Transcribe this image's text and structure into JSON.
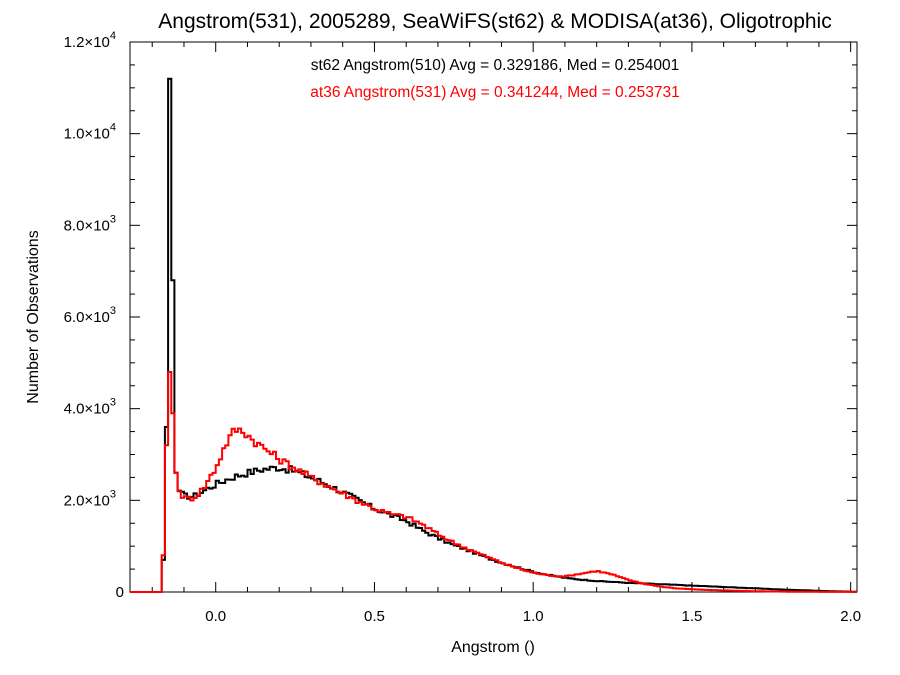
{
  "chart_data": {
    "type": "line",
    "style": "step-histogram",
    "title": "Angstrom(531), 2005289, SeaWiFS(st62) & MODISA(at36), Oligotrophic",
    "xlabel": "Angstrom ()",
    "ylabel": "Number of Observations",
    "xlim": [
      -0.27,
      2.02
    ],
    "ylim": [
      0,
      12000
    ],
    "xticks": [
      0.0,
      0.5,
      1.0,
      1.5,
      2.0
    ],
    "xtick_labels": [
      "0.0",
      "0.5",
      "1.0",
      "1.5",
      "2.0"
    ],
    "yticks": [
      0,
      2000,
      4000,
      6000,
      8000,
      10000,
      12000
    ],
    "ytick_labels": [
      {
        "mantissa": "0",
        "exponent": ""
      },
      {
        "mantissa": "2.0×10",
        "exponent": "3"
      },
      {
        "mantissa": "4.0×10",
        "exponent": "3"
      },
      {
        "mantissa": "6.0×10",
        "exponent": "3"
      },
      {
        "mantissa": "8.0×10",
        "exponent": "3"
      },
      {
        "mantissa": "1.0×10",
        "exponent": "4"
      },
      {
        "mantissa": "1.2×10",
        "exponent": "4"
      }
    ],
    "grid": false,
    "legend_position": "top-center",
    "series": [
      {
        "legend_text": "st62 Angstrom(510) Avg = 0.329186, Med = 0.254001",
        "color": "#000000",
        "points": [
          [
            -0.27,
            0
          ],
          [
            -0.17,
            0
          ],
          [
            -0.16,
            1400
          ],
          [
            -0.155,
            3600
          ],
          [
            -0.15,
            7000
          ],
          [
            -0.145,
            11200
          ],
          [
            -0.14,
            8600
          ],
          [
            -0.135,
            6800
          ],
          [
            -0.13,
            4200
          ],
          [
            -0.125,
            2600
          ],
          [
            -0.12,
            2250
          ],
          [
            -0.1,
            2100
          ],
          [
            -0.07,
            2080
          ],
          [
            -0.04,
            2200
          ],
          [
            0.0,
            2350
          ],
          [
            0.05,
            2500
          ],
          [
            0.1,
            2600
          ],
          [
            0.15,
            2680
          ],
          [
            0.2,
            2720
          ],
          [
            0.25,
            2640
          ],
          [
            0.3,
            2500
          ],
          [
            0.35,
            2350
          ],
          [
            0.4,
            2180
          ],
          [
            0.45,
            2000
          ],
          [
            0.5,
            1820
          ],
          [
            0.55,
            1680
          ],
          [
            0.6,
            1550
          ],
          [
            0.65,
            1350
          ],
          [
            0.7,
            1180
          ],
          [
            0.75,
            1020
          ],
          [
            0.8,
            900
          ],
          [
            0.85,
            760
          ],
          [
            0.9,
            640
          ],
          [
            0.95,
            540
          ],
          [
            1.0,
            440
          ],
          [
            1.05,
            370
          ],
          [
            1.1,
            310
          ],
          [
            1.15,
            270
          ],
          [
            1.2,
            240
          ],
          [
            1.25,
            220
          ],
          [
            1.3,
            200
          ],
          [
            1.35,
            185
          ],
          [
            1.4,
            170
          ],
          [
            1.45,
            155
          ],
          [
            1.5,
            140
          ],
          [
            1.55,
            125
          ],
          [
            1.6,
            110
          ],
          [
            1.65,
            95
          ],
          [
            1.7,
            80
          ],
          [
            1.75,
            65
          ],
          [
            1.8,
            50
          ],
          [
            1.85,
            38
          ],
          [
            1.9,
            25
          ],
          [
            1.95,
            15
          ],
          [
            2.0,
            8
          ],
          [
            2.02,
            5
          ]
        ]
      },
      {
        "legend_text": "at36 Angstrom(531) Avg = 0.341244, Med = 0.253731",
        "color": "#ff0000",
        "points": [
          [
            -0.27,
            0
          ],
          [
            -0.17,
            0
          ],
          [
            -0.16,
            1600
          ],
          [
            -0.155,
            3200
          ],
          [
            -0.15,
            4400
          ],
          [
            -0.145,
            4800
          ],
          [
            -0.14,
            4200
          ],
          [
            -0.135,
            3900
          ],
          [
            -0.13,
            3400
          ],
          [
            -0.125,
            2600
          ],
          [
            -0.12,
            2250
          ],
          [
            -0.1,
            2050
          ],
          [
            -0.07,
            2050
          ],
          [
            -0.04,
            2250
          ],
          [
            0.0,
            2700
          ],
          [
            0.03,
            3200
          ],
          [
            0.06,
            3550
          ],
          [
            0.09,
            3500
          ],
          [
            0.12,
            3300
          ],
          [
            0.15,
            3150
          ],
          [
            0.2,
            2900
          ],
          [
            0.25,
            2700
          ],
          [
            0.3,
            2500
          ],
          [
            0.35,
            2330
          ],
          [
            0.4,
            2150
          ],
          [
            0.45,
            1980
          ],
          [
            0.5,
            1820
          ],
          [
            0.55,
            1700
          ],
          [
            0.6,
            1640
          ],
          [
            0.65,
            1480
          ],
          [
            0.7,
            1260
          ],
          [
            0.75,
            1080
          ],
          [
            0.8,
            920
          ],
          [
            0.85,
            780
          ],
          [
            0.9,
            640
          ],
          [
            0.95,
            520
          ],
          [
            1.0,
            420
          ],
          [
            1.05,
            360
          ],
          [
            1.1,
            340
          ],
          [
            1.15,
            400
          ],
          [
            1.2,
            460
          ],
          [
            1.25,
            380
          ],
          [
            1.3,
            260
          ],
          [
            1.35,
            180
          ],
          [
            1.4,
            120
          ],
          [
            1.45,
            80
          ],
          [
            1.5,
            60
          ],
          [
            1.55,
            45
          ],
          [
            1.6,
            35
          ],
          [
            1.65,
            25
          ],
          [
            1.7,
            18
          ],
          [
            1.75,
            12
          ],
          [
            1.8,
            8
          ],
          [
            1.85,
            5
          ],
          [
            1.9,
            3
          ],
          [
            2.0,
            2
          ],
          [
            2.02,
            0
          ]
        ]
      }
    ]
  }
}
